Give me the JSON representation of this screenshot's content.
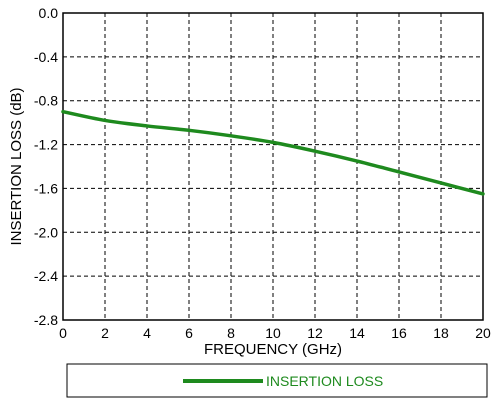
{
  "chart_data": {
    "type": "line",
    "xlabel": "FREQUENCY (GHz)",
    "ylabel": "INSERTION LOSS (dB)",
    "xlim": [
      0,
      20
    ],
    "ylim": [
      -2.8,
      0.0
    ],
    "xticks": [
      "0",
      "2",
      "4",
      "6",
      "8",
      "10",
      "12",
      "14",
      "16",
      "18",
      "20"
    ],
    "yticks": [
      "0.0",
      "-0.4",
      "-0.8",
      "-1.2",
      "-1.6",
      "-2.0",
      "-2.4",
      "-2.8"
    ],
    "grid": true,
    "legend_position": "bottom",
    "series": [
      {
        "name": "INSERTION LOSS",
        "color": "#1e8a1e",
        "x": [
          0,
          2,
          4,
          6,
          8,
          10,
          12,
          14,
          16,
          18,
          20
        ],
        "y": [
          -0.9,
          -0.98,
          -1.03,
          -1.07,
          -1.12,
          -1.18,
          -1.26,
          -1.35,
          -1.45,
          -1.55,
          -1.65
        ]
      }
    ]
  }
}
